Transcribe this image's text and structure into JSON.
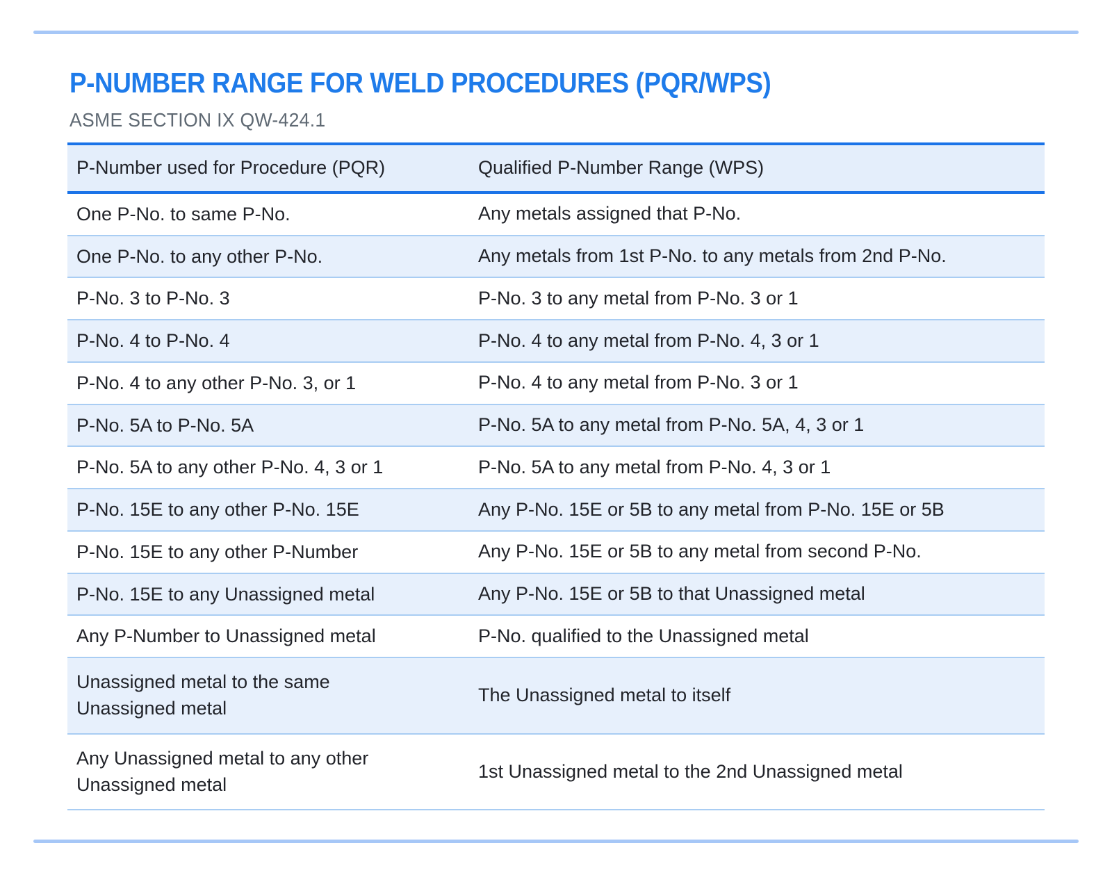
{
  "page": {
    "title": "P-NUMBER RANGE FOR WELD PROCEDURES (PQR/WPS)",
    "subtitle": "ASME SECTION IX QW-424.1"
  },
  "table": {
    "headers": {
      "pqr": "P-Number used for Procedure (PQR)",
      "wps": "Qualified P-Number Range (WPS)"
    },
    "rows": [
      {
        "pqr": "One P-No. to same P-No.",
        "wps": "Any metals assigned that P-No."
      },
      {
        "pqr": "One P-No. to any other P-No.",
        "wps": "Any metals from 1st P-No. to any metals from 2nd P-No."
      },
      {
        "pqr": "P-No. 3 to P-No. 3",
        "wps": "P-No. 3 to any metal from P-No. 3 or 1"
      },
      {
        "pqr": "P-No. 4 to P-No. 4",
        "wps": "P-No. 4 to any metal from P-No. 4, 3 or 1"
      },
      {
        "pqr": "P-No. 4 to any other P-No. 3, or 1",
        "wps": "P-No. 4 to any metal from P-No. 3 or 1"
      },
      {
        "pqr": "P-No. 5A to P-No. 5A",
        "wps": "P-No. 5A to any metal from P-No. 5A, 4, 3 or 1"
      },
      {
        "pqr": "P-No. 5A to any other P-No. 4, 3 or 1",
        "wps": "P-No. 5A to any metal from P-No. 4, 3 or 1"
      },
      {
        "pqr": "P-No. 15E to any other P-No. 15E",
        "wps": "Any P-No. 15E or 5B to any metal from P-No. 15E or 5B"
      },
      {
        "pqr": "P-No. 15E to any other P-Number",
        "wps": "Any P-No. 15E or 5B to any metal from second P-No."
      },
      {
        "pqr": "P-No. 15E to any Unassigned metal",
        "wps": "Any P-No. 15E or 5B to that Unassigned metal"
      },
      {
        "pqr": "Any P-Number to Unassigned metal",
        "wps": "P-No. qualified to the Unassigned metal"
      },
      {
        "pqr": "Unassigned metal to the same Unassigned metal",
        "wps": "The Unassigned metal to itself"
      },
      {
        "pqr": "Any Unassigned metal to any other Unassigned metal",
        "wps": "1st Unassigned metal to the 2nd Unassigned metal"
      }
    ]
  },
  "colors": {
    "title_blue": "#1e7bea",
    "accent_blue": "#1a73e8",
    "header_row_bg": "#e4eefb",
    "alt_row_bg": "#e7f0fc",
    "row_divider": "#a9cdf3",
    "page_rule": "#a6c7f7",
    "subtitle_gray": "#5f6973",
    "body_text": "#212329"
  }
}
